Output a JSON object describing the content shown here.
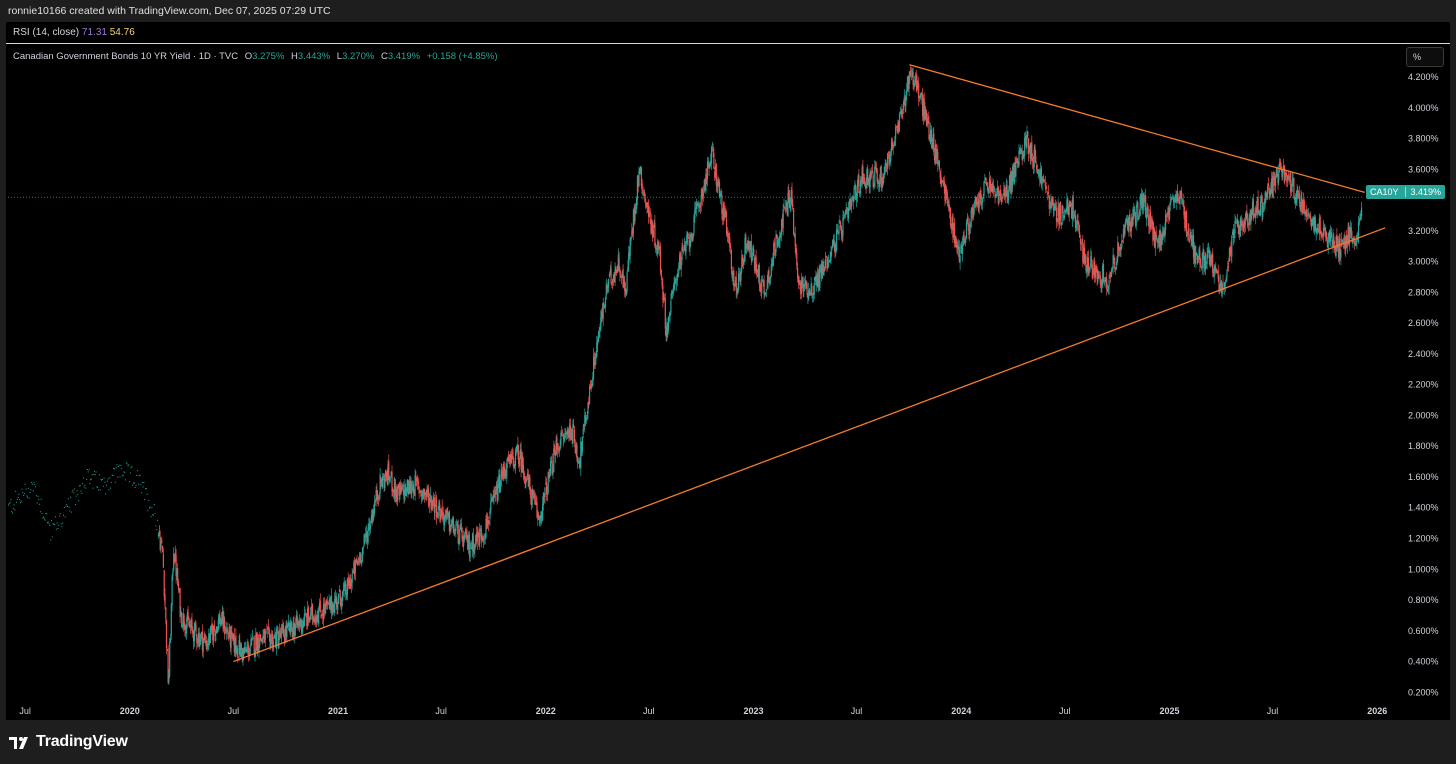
{
  "header": {
    "attribution": "ronnie10166 created with TradingView.com, Dec 07, 2025 07:29 UTC"
  },
  "indicator": {
    "name": "RSI (14, close)",
    "value1": "71.31",
    "value2": "54.76"
  },
  "legend": {
    "title": "Canadian Government Bonds 10 YR Yield · 1D · TVC",
    "open_label": "O",
    "open": "3.275%",
    "high_label": "H",
    "high": "3.443%",
    "low_label": "L",
    "low": "3.270%",
    "close_label": "C",
    "close": "3.419%",
    "change": "+0.158 (+4.85%)"
  },
  "scale_button": "%",
  "price_tag": {
    "symbol": "CA10Y",
    "price": "3.419%"
  },
  "footer": {
    "brand": "TradingView"
  },
  "colors": {
    "up": "#26a69a",
    "down": "#ef5350",
    "trendline": "#f57c2b",
    "background": "#000000",
    "text": "#d1d4dc"
  },
  "icons": [
    "tradingview-logo-icon"
  ],
  "chart_data": {
    "type": "line",
    "title": "Canadian Government Bonds 10 YR Yield · 1D · TVC",
    "xlabel": "",
    "ylabel": "",
    "ylim": [
      0.15,
      4.35
    ],
    "y_unit": "%",
    "y_ticks": [
      "4.200%",
      "4.000%",
      "3.800%",
      "3.600%",
      "3.200%",
      "3.000%",
      "2.800%",
      "2.600%",
      "2.400%",
      "2.200%",
      "2.000%",
      "1.800%",
      "1.600%",
      "1.400%",
      "1.200%",
      "1.000%",
      "0.800%",
      "0.600%",
      "0.400%",
      "0.200%"
    ],
    "x_range": [
      "2019-06-01",
      "2026-02-10"
    ],
    "x_ticks": [
      {
        "date": "2019-07-01",
        "label": "Jul",
        "major": false
      },
      {
        "date": "2020-01-01",
        "label": "2020",
        "major": true
      },
      {
        "date": "2020-07-01",
        "label": "Jul",
        "major": false
      },
      {
        "date": "2021-01-01",
        "label": "2021",
        "major": true
      },
      {
        "date": "2021-07-01",
        "label": "Jul",
        "major": false
      },
      {
        "date": "2022-01-01",
        "label": "2022",
        "major": true
      },
      {
        "date": "2022-07-01",
        "label": "Jul",
        "major": false
      },
      {
        "date": "2023-01-01",
        "label": "2023",
        "major": true
      },
      {
        "date": "2023-07-01",
        "label": "Jul",
        "major": false
      },
      {
        "date": "2024-01-01",
        "label": "2024",
        "major": true
      },
      {
        "date": "2024-07-01",
        "label": "Jul",
        "major": false
      },
      {
        "date": "2025-01-01",
        "label": "2025",
        "major": true
      },
      {
        "date": "2025-07-01",
        "label": "Jul",
        "major": false
      },
      {
        "date": "2026-01-01",
        "label": "2026",
        "major": true
      }
    ],
    "last_value": 3.419,
    "series": [
      {
        "name": "CA10Y",
        "points": [
          [
            "2019-06-01",
            1.4
          ],
          [
            "2019-07-15",
            1.55
          ],
          [
            "2019-08-15",
            1.25
          ],
          [
            "2019-09-15",
            1.4
          ],
          [
            "2019-10-15",
            1.6
          ],
          [
            "2019-11-15",
            1.55
          ],
          [
            "2019-12-15",
            1.65
          ],
          [
            "2020-01-15",
            1.58
          ],
          [
            "2020-02-15",
            1.35
          ],
          [
            "2020-02-28",
            1.1
          ],
          [
            "2020-03-09",
            0.24
          ],
          [
            "2020-03-18",
            1.15
          ],
          [
            "2020-03-31",
            0.7
          ],
          [
            "2020-04-20",
            0.6
          ],
          [
            "2020-05-15",
            0.52
          ],
          [
            "2020-06-08",
            0.68
          ],
          [
            "2020-06-30",
            0.52
          ],
          [
            "2020-07-20",
            0.45
          ],
          [
            "2020-08-15",
            0.55
          ],
          [
            "2020-09-15",
            0.55
          ],
          [
            "2020-10-15",
            0.62
          ],
          [
            "2020-11-15",
            0.7
          ],
          [
            "2020-12-15",
            0.75
          ],
          [
            "2021-01-15",
            0.85
          ],
          [
            "2021-02-15",
            1.15
          ],
          [
            "2021-03-15",
            1.55
          ],
          [
            "2021-03-31",
            1.62
          ],
          [
            "2021-04-15",
            1.48
          ],
          [
            "2021-05-15",
            1.55
          ],
          [
            "2021-06-15",
            1.45
          ],
          [
            "2021-07-15",
            1.3
          ],
          [
            "2021-08-20",
            1.15
          ],
          [
            "2021-09-15",
            1.25
          ],
          [
            "2021-10-20",
            1.65
          ],
          [
            "2021-11-15",
            1.75
          ],
          [
            "2021-12-20",
            1.32
          ],
          [
            "2022-01-20",
            1.8
          ],
          [
            "2022-02-15",
            1.92
          ],
          [
            "2022-03-01",
            1.7
          ],
          [
            "2022-03-31",
            2.45
          ],
          [
            "2022-04-20",
            2.85
          ],
          [
            "2022-05-10",
            3.0
          ],
          [
            "2022-05-20",
            2.8
          ],
          [
            "2022-06-14",
            3.6
          ],
          [
            "2022-07-01",
            3.3
          ],
          [
            "2022-07-20",
            3.05
          ],
          [
            "2022-08-01",
            2.55
          ],
          [
            "2022-08-20",
            2.95
          ],
          [
            "2022-09-15",
            3.2
          ],
          [
            "2022-10-20",
            3.7
          ],
          [
            "2022-11-15",
            3.2
          ],
          [
            "2022-12-01",
            2.8
          ],
          [
            "2022-12-20",
            3.15
          ],
          [
            "2023-01-20",
            2.8
          ],
          [
            "2023-02-15",
            3.2
          ],
          [
            "2023-03-08",
            3.45
          ],
          [
            "2023-03-20",
            2.85
          ],
          [
            "2023-04-15",
            2.82
          ],
          [
            "2023-05-15",
            3.05
          ],
          [
            "2023-06-15",
            3.3
          ],
          [
            "2023-07-10",
            3.55
          ],
          [
            "2023-08-15",
            3.55
          ],
          [
            "2023-09-15",
            3.9
          ],
          [
            "2023-10-04",
            4.25
          ],
          [
            "2023-10-20",
            4.08
          ],
          [
            "2023-11-10",
            3.8
          ],
          [
            "2023-12-01",
            3.5
          ],
          [
            "2023-12-27",
            3.05
          ],
          [
            "2024-01-20",
            3.3
          ],
          [
            "2024-02-15",
            3.5
          ],
          [
            "2024-03-15",
            3.4
          ],
          [
            "2024-04-25",
            3.8
          ],
          [
            "2024-05-20",
            3.55
          ],
          [
            "2024-06-15",
            3.3
          ],
          [
            "2024-07-15",
            3.35
          ],
          [
            "2024-08-05",
            3.0
          ],
          [
            "2024-09-15",
            2.88
          ],
          [
            "2024-10-15",
            3.2
          ],
          [
            "2024-11-15",
            3.4
          ],
          [
            "2024-12-10",
            3.1
          ],
          [
            "2025-01-15",
            3.45
          ],
          [
            "2025-02-15",
            3.05
          ],
          [
            "2025-03-15",
            3.0
          ],
          [
            "2025-04-04",
            2.82
          ],
          [
            "2025-04-25",
            3.2
          ],
          [
            "2025-05-20",
            3.3
          ],
          [
            "2025-06-15",
            3.38
          ],
          [
            "2025-07-15",
            3.6
          ],
          [
            "2025-08-15",
            3.42
          ],
          [
            "2025-09-15",
            3.25
          ],
          [
            "2025-10-15",
            3.12
          ],
          [
            "2025-10-30",
            3.08
          ],
          [
            "2025-11-15",
            3.2
          ],
          [
            "2025-11-28",
            3.15
          ],
          [
            "2025-12-05",
            3.419
          ]
        ]
      }
    ],
    "trendlines": [
      {
        "name": "upper",
        "from": [
          "2023-10-02",
          4.28
        ],
        "to": [
          "2025-12-10",
          3.45
        ]
      },
      {
        "name": "lower",
        "from": [
          "2020-07-01",
          0.4
        ],
        "to": [
          "2026-01-15",
          3.22
        ]
      }
    ]
  }
}
